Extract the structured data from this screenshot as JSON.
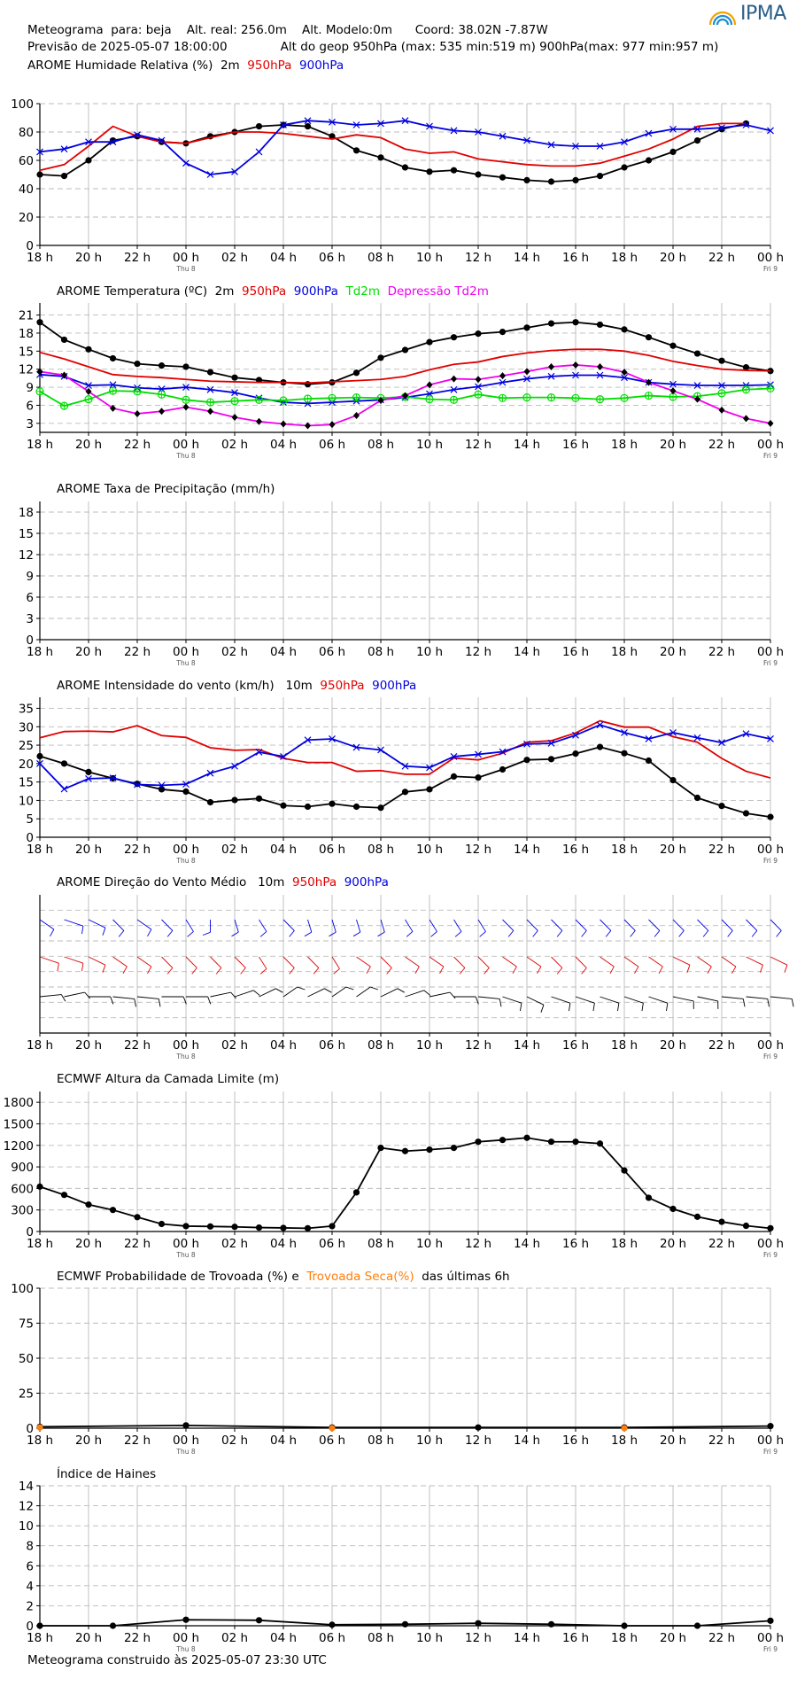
{
  "header": {
    "line1": "Meteograma  para: beja    Alt. real: 256.0m    Alt. Modelo:0m      Coord: 38.02N -7.87W",
    "line2": "Previsão de 2025-05-07 18:00:00              Alt do geop 950hPa (max: 535 min:519 m) 900hPa(max: 977 min:957 m)",
    "logo": "IPMA"
  },
  "footer": "Meteograma construido às 2025-05-07 23:30 UTC",
  "x_axis": {
    "ticks": [
      "18 h",
      "20 h",
      "22 h",
      "00 h",
      "02 h",
      "04 h",
      "06 h",
      "08 h",
      "10 h",
      "12 h",
      "14 h",
      "16 h",
      "18 h",
      "20 h",
      "22 h",
      "00 h"
    ],
    "sub_labels": [
      {
        "tick": 3,
        "text": "Thu 8"
      },
      {
        "tick": 15,
        "text": "Fri 9"
      }
    ]
  },
  "colors": {
    "black": "#000000",
    "red": "#e00000",
    "blue": "#0000e0",
    "green": "#00dd00",
    "magenta": "#ee00ee",
    "orange": "#ff7f0e",
    "grid": "#bbbbbb"
  },
  "chart_data": [
    {
      "id": "humidity",
      "type": "line",
      "title_parts": [
        {
          "text": "AROME Humidade Relativa (%)  2m  ",
          "color": "#000000"
        },
        {
          "text": "950hPa  ",
          "color": "#e00000"
        },
        {
          "text": "900hPa",
          "color": "#0000e0"
        }
      ],
      "ylim": [
        0,
        100
      ],
      "yticks": [
        "0",
        "20",
        "40",
        "60",
        "80",
        "100"
      ],
      "ytick_values": [
        0,
        20,
        40,
        60,
        80,
        100
      ],
      "x": [
        0,
        1,
        2,
        3,
        4,
        5,
        6,
        7,
        8,
        9,
        10,
        11,
        12,
        13,
        14,
        15,
        16,
        17,
        18,
        19,
        20,
        21,
        22,
        23,
        24,
        25,
        26,
        27,
        28,
        29,
        30
      ],
      "series": [
        {
          "name": "2m",
          "color": "#000000",
          "marker": "dot",
          "values": [
            50,
            49,
            60,
            74,
            77,
            73,
            72,
            77,
            80,
            84,
            85,
            84,
            77,
            67,
            62,
            55,
            52,
            53,
            50,
            48,
            46,
            45,
            46,
            49,
            55,
            60,
            66,
            74,
            82,
            86,
            null
          ]
        },
        {
          "name": "950hPa",
          "color": "#e00000",
          "marker": "none",
          "values": [
            53,
            57,
            70,
            84,
            77,
            73,
            72,
            76,
            80,
            80,
            79,
            77,
            75,
            78,
            76,
            68,
            65,
            66,
            61,
            59,
            57,
            56,
            56,
            58,
            63,
            68,
            75,
            84,
            86,
            86,
            null
          ]
        },
        {
          "name": "900hPa",
          "color": "#0000e0",
          "marker": "x",
          "values": [
            66,
            68,
            73,
            73,
            78,
            74,
            58,
            50,
            52,
            66,
            85,
            88,
            87,
            85,
            86,
            88,
            84,
            81,
            80,
            77,
            74,
            71,
            70,
            70,
            73,
            79,
            82,
            82,
            83,
            85,
            81
          ]
        }
      ]
    },
    {
      "id": "temperature",
      "type": "line",
      "title_parts": [
        {
          "text": "AROME Temperatura (ºC)  2m  ",
          "color": "#000000"
        },
        {
          "text": "950hPa  ",
          "color": "#e00000"
        },
        {
          "text": "900hPa  ",
          "color": "#0000e0"
        },
        {
          "text": "Td2m  ",
          "color": "#00dd00"
        },
        {
          "text": "Depressão Td2m",
          "color": "#ee00ee"
        }
      ],
      "ylim": [
        1.5,
        23.0
      ],
      "yticks": [
        "3",
        "6",
        "9",
        "12",
        "15",
        "18",
        "21"
      ],
      "ytick_values": [
        3,
        6,
        9,
        12,
        15,
        18,
        21
      ],
      "x": [
        0,
        1,
        2,
        3,
        4,
        5,
        6,
        7,
        8,
        9,
        10,
        11,
        12,
        13,
        14,
        15,
        16,
        17,
        18,
        19,
        20,
        21,
        22,
        23,
        24,
        25,
        26,
        27,
        28,
        29,
        30
      ],
      "series": [
        {
          "name": "2m",
          "color": "#000000",
          "marker": "dot",
          "values": [
            19.8,
            16.9,
            15.3,
            13.8,
            12.9,
            12.6,
            12.4,
            11.5,
            10.6,
            10.2,
            9.8,
            9.5,
            9.8,
            11.4,
            13.9,
            15.2,
            16.5,
            17.3,
            17.9,
            18.2,
            18.9,
            19.6,
            19.8,
            19.4,
            18.6,
            17.3,
            15.9,
            14.6,
            13.4,
            12.3,
            11.7
          ]
        },
        {
          "name": "950hPa",
          "color": "#e00000",
          "marker": "none",
          "values": [
            14.8,
            13.7,
            12.4,
            11.1,
            10.8,
            10.6,
            10.3,
            10.0,
            9.9,
            9.8,
            9.8,
            9.7,
            9.9,
            10.1,
            10.3,
            10.8,
            11.9,
            12.8,
            13.2,
            14.1,
            14.7,
            15.1,
            15.3,
            15.3,
            15.0,
            14.3,
            13.3,
            12.6,
            12.0,
            11.8,
            11.7
          ]
        },
        {
          "name": "900hPa",
          "color": "#0000e0",
          "marker": "x",
          "values": [
            11.1,
            10.8,
            9.3,
            9.4,
            8.9,
            8.7,
            9.0,
            8.6,
            8.1,
            7.2,
            6.5,
            6.3,
            6.5,
            6.7,
            6.9,
            7.3,
            7.9,
            8.6,
            9.1,
            9.8,
            10.4,
            10.8,
            11.0,
            11.0,
            10.6,
            9.8,
            9.5,
            9.3,
            9.3,
            9.3,
            9.4
          ]
        },
        {
          "name": "Td2m",
          "color": "#00dd00",
          "marker": "circle",
          "values": [
            8.3,
            5.9,
            7.0,
            8.4,
            8.3,
            7.8,
            6.9,
            6.5,
            6.7,
            6.9,
            6.8,
            7.1,
            7.2,
            7.3,
            7.2,
            7.4,
            7.0,
            6.9,
            7.8,
            7.2,
            7.3,
            7.3,
            7.2,
            7.0,
            7.2,
            7.6,
            7.4,
            7.5,
            8.0,
            8.6,
            8.8
          ]
        },
        {
          "name": "Depressão Td2m",
          "color": "#ee00ee",
          "marker": "diamond",
          "values": [
            11.6,
            11.0,
            8.3,
            5.5,
            4.6,
            5.0,
            5.7,
            5.0,
            4.0,
            3.3,
            2.9,
            2.6,
            2.8,
            4.3,
            6.8,
            7.6,
            9.4,
            10.4,
            10.3,
            10.9,
            11.6,
            12.4,
            12.7,
            12.4,
            11.5,
            9.8,
            8.4,
            7.0,
            5.2,
            3.8,
            3.0
          ]
        }
      ]
    },
    {
      "id": "precipitation",
      "type": "line",
      "title_parts": [
        {
          "text": "AROME Taxa de Precipitação (mm/h)",
          "color": "#000000"
        }
      ],
      "ylim": [
        0,
        19.5
      ],
      "yticks": [
        "0",
        "3",
        "6",
        "9",
        "12",
        "15",
        "18"
      ],
      "ytick_values": [
        0,
        3,
        6,
        9,
        12,
        15,
        18
      ],
      "x": [],
      "series": []
    },
    {
      "id": "wind_speed",
      "type": "line",
      "title_parts": [
        {
          "text": "AROME Intensidade do vento (km/h)   10m  ",
          "color": "#000000"
        },
        {
          "text": "950hPa  ",
          "color": "#e00000"
        },
        {
          "text": "900hPa",
          "color": "#0000e0"
        }
      ],
      "ylim": [
        0,
        38
      ],
      "yticks": [
        "0",
        "5",
        "10",
        "15",
        "20",
        "25",
        "30",
        "35"
      ],
      "ytick_values": [
        0,
        5,
        10,
        15,
        20,
        25,
        30,
        35
      ],
      "x": [
        0,
        1,
        2,
        3,
        4,
        5,
        6,
        7,
        8,
        9,
        10,
        11,
        12,
        13,
        14,
        15,
        16,
        17,
        18,
        19,
        20,
        21,
        22,
        23,
        24,
        25,
        26,
        27,
        28,
        29,
        30
      ],
      "series": [
        {
          "name": "10m",
          "color": "#000000",
          "marker": "dot",
          "values": [
            22.0,
            20.0,
            17.7,
            16.0,
            14.5,
            13.0,
            12.4,
            9.5,
            10.1,
            10.5,
            8.6,
            8.3,
            9.1,
            8.3,
            8.0,
            12.3,
            13.0,
            16.5,
            16.2,
            18.4,
            21.0,
            21.2,
            22.7,
            24.5,
            22.8,
            20.8,
            15.5,
            10.7,
            8.5,
            6.5,
            5.5
          ]
        },
        {
          "name": "950hPa",
          "color": "#e00000",
          "marker": "none",
          "values": [
            27.0,
            28.7,
            28.8,
            28.6,
            30.3,
            27.6,
            27.1,
            24.3,
            23.6,
            23.8,
            21.4,
            20.3,
            20.3,
            17.9,
            18.1,
            17.1,
            17.1,
            21.5,
            21.0,
            22.8,
            25.8,
            26.2,
            28.3,
            31.6,
            29.9,
            29.9,
            27.3,
            25.8,
            21.4,
            17.9,
            16.1
          ]
        },
        {
          "name": "900hPa",
          "color": "#0000e0",
          "marker": "x",
          "values": [
            20.0,
            13.1,
            15.9,
            16.1,
            14.3,
            14.1,
            14.4,
            17.4,
            19.3,
            23.1,
            21.9,
            26.4,
            26.7,
            24.4,
            23.7,
            19.3,
            18.9,
            21.9,
            22.5,
            23.2,
            25.3,
            25.5,
            27.7,
            30.5,
            28.4,
            26.7,
            28.4,
            27.0,
            25.7,
            28.1,
            26.7
          ]
        }
      ]
    },
    {
      "id": "wind_direction",
      "type": "barbs",
      "title_parts": [
        {
          "text": "AROME Direção do Vento Médio   10m  ",
          "color": "#000000"
        },
        {
          "text": "950hPa  ",
          "color": "#e00000"
        },
        {
          "text": "900hPa",
          "color": "#0000e0"
        }
      ],
      "yticks": [],
      "x": [
        0,
        1,
        2,
        3,
        4,
        5,
        6,
        7,
        8,
        9,
        10,
        11,
        12,
        13,
        14,
        15,
        16,
        17,
        18,
        19,
        20,
        21,
        22,
        23,
        24,
        25,
        26,
        27,
        28,
        29,
        30
      ],
      "levels": [
        {
          "name": "900hPa",
          "color": "#0000e0",
          "direction_deg": [
            320,
            300,
            310,
            330,
            320,
            330,
            340,
            0,
            350,
            340,
            330,
            350,
            350,
            350,
            350,
            340,
            340,
            340,
            340,
            330,
            330,
            330,
            330,
            330,
            330,
            330,
            330,
            330,
            330,
            330,
            330
          ]
        },
        {
          "name": "950hPa",
          "color": "#e00000",
          "direction_deg": [
            300,
            300,
            310,
            320,
            320,
            330,
            330,
            330,
            330,
            340,
            330,
            330,
            340,
            320,
            330,
            320,
            320,
            330,
            330,
            320,
            320,
            330,
            330,
            320,
            320,
            320,
            310,
            320,
            320,
            310,
            310
          ]
        },
        {
          "name": "10m",
          "color": "#000000",
          "direction_deg": [
            260,
            250,
            270,
            280,
            280,
            270,
            270,
            250,
            240,
            230,
            220,
            230,
            220,
            220,
            230,
            240,
            250,
            270,
            280,
            300,
            310,
            300,
            300,
            300,
            300,
            300,
            290,
            290,
            280,
            280,
            280
          ]
        }
      ]
    },
    {
      "id": "boundary_layer",
      "type": "line",
      "title_parts": [
        {
          "text": "ECMWF Altura da Camada Limite (m)",
          "color": "#000000"
        }
      ],
      "ylim": [
        0,
        1950
      ],
      "yticks": [
        "0",
        "300",
        "600",
        "900",
        "1200",
        "1500",
        "1800"
      ],
      "ytick_values": [
        0,
        300,
        600,
        900,
        1200,
        1500,
        1800
      ],
      "x": [
        0,
        1,
        2,
        3,
        4,
        5,
        6,
        7,
        8,
        9,
        10,
        11,
        12,
        13,
        14,
        15,
        16,
        17,
        18,
        19,
        20,
        21,
        22,
        23,
        24,
        25,
        26,
        27,
        28,
        29,
        30
      ],
      "series": [
        {
          "name": "",
          "color": "#000000",
          "marker": "dot",
          "values": [
            625,
            510,
            375,
            300,
            200,
            105,
            75,
            70,
            65,
            55,
            50,
            45,
            75,
            545,
            1165,
            1120,
            1140,
            1165,
            1250,
            1275,
            1305,
            1250,
            1250,
            1225,
            850,
            470,
            315,
            205,
            135,
            80,
            45
          ]
        }
      ]
    },
    {
      "id": "thunderstorm",
      "type": "line",
      "title_parts": [
        {
          "text": "ECMWF Probabilidade de Trovoada (%) e  ",
          "color": "#000000"
        },
        {
          "text": "Trovoada Seca(%)",
          "color": "#ff7f0e"
        },
        {
          "text": "  das últimas 6h",
          "color": "#000000"
        }
      ],
      "ylim": [
        0,
        100
      ],
      "yticks": [
        "0",
        "25",
        "50",
        "75",
        "100"
      ],
      "ytick_values": [
        0,
        25,
        50,
        75,
        100
      ],
      "x": [
        0,
        6,
        12,
        18,
        24,
        30
      ],
      "series": [
        {
          "name": "Probabilidade de Trovoada",
          "color": "#000000",
          "marker": "dot",
          "values": [
            1,
            2,
            0.5,
            0.5,
            0.5,
            1.5
          ]
        },
        {
          "name": "Trovoada Seca",
          "color": "#ff7f0e",
          "marker": "dot",
          "values": [
            0.5,
            null,
            0,
            null,
            0,
            null
          ]
        }
      ]
    },
    {
      "id": "haines",
      "type": "line",
      "title_parts": [
        {
          "text": "Índice de Haines",
          "color": "#000000"
        }
      ],
      "ylim": [
        0,
        14
      ],
      "yticks": [
        "0",
        "2",
        "4",
        "6",
        "8",
        "10",
        "12",
        "14"
      ],
      "ytick_values": [
        0,
        2,
        4,
        6,
        8,
        10,
        12,
        14
      ],
      "x": [
        0,
        3,
        6,
        9,
        12,
        15,
        18,
        21,
        24,
        27,
        30
      ],
      "series": [
        {
          "name": "",
          "color": "#000000",
          "marker": "dot",
          "values": [
            0,
            0,
            0.6,
            0.55,
            0.1,
            0.15,
            0.25,
            0.15,
            0.0,
            0.0,
            0.5
          ]
        }
      ]
    }
  ]
}
